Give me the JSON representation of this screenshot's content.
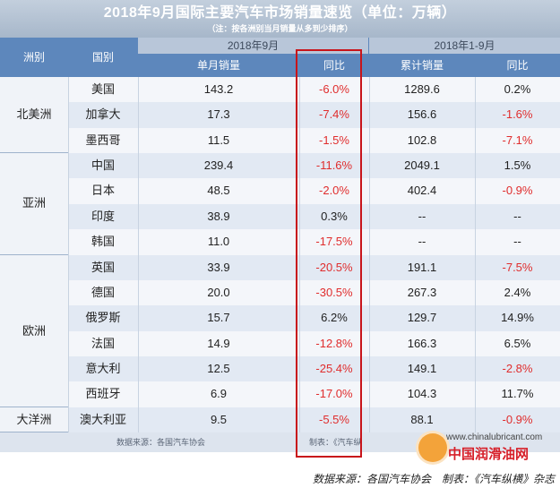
{
  "title": "2018年9月国际主要汽车市场销量速览（单位：万辆）",
  "subtitle": "（注：按各洲别当月销量从多到少排序）",
  "headers": {
    "continent": "洲别",
    "country": "国别",
    "group_month": "2018年9月",
    "group_ytd": "2018年1-9月",
    "monthly_sales": "单月销量",
    "yoy_month": "同比",
    "cumulative_sales": "累计销量",
    "yoy_ytd": "同比"
  },
  "continents": [
    {
      "name": "北美洲",
      "rows": 3
    },
    {
      "name": "亚洲",
      "rows": 4
    },
    {
      "name": "欧洲",
      "rows": 6
    },
    {
      "name": "大洋洲",
      "rows": 1
    }
  ],
  "rows": [
    {
      "country": "美国",
      "monthly": "143.2",
      "yoy": "-6.0%",
      "cumulative": "1289.6",
      "yoy_ytd": "0.2%"
    },
    {
      "country": "加拿大",
      "monthly": "17.3",
      "yoy": "-7.4%",
      "cumulative": "156.6",
      "yoy_ytd": "-1.6%"
    },
    {
      "country": "墨西哥",
      "monthly": "11.5",
      "yoy": "-1.5%",
      "cumulative": "102.8",
      "yoy_ytd": "-7.1%"
    },
    {
      "country": "中国",
      "monthly": "239.4",
      "yoy": "-11.6%",
      "cumulative": "2049.1",
      "yoy_ytd": "1.5%"
    },
    {
      "country": "日本",
      "monthly": "48.5",
      "yoy": "-2.0%",
      "cumulative": "402.4",
      "yoy_ytd": "-0.9%"
    },
    {
      "country": "印度",
      "monthly": "38.9",
      "yoy": "0.3%",
      "cumulative": "--",
      "yoy_ytd": "--"
    },
    {
      "country": "韩国",
      "monthly": "11.0",
      "yoy": "-17.5%",
      "cumulative": "--",
      "yoy_ytd": "--"
    },
    {
      "country": "英国",
      "monthly": "33.9",
      "yoy": "-20.5%",
      "cumulative": "191.1",
      "yoy_ytd": "-7.5%"
    },
    {
      "country": "德国",
      "monthly": "20.0",
      "yoy": "-30.5%",
      "cumulative": "267.3",
      "yoy_ytd": "2.4%"
    },
    {
      "country": "俄罗斯",
      "monthly": "15.7",
      "yoy": "6.2%",
      "cumulative": "129.7",
      "yoy_ytd": "14.9%"
    },
    {
      "country": "法国",
      "monthly": "14.9",
      "yoy": "-12.8%",
      "cumulative": "166.3",
      "yoy_ytd": "6.5%"
    },
    {
      "country": "意大利",
      "monthly": "12.5",
      "yoy": "-25.4%",
      "cumulative": "149.1",
      "yoy_ytd": "-2.8%"
    },
    {
      "country": "西班牙",
      "monthly": "6.9",
      "yoy": "-17.0%",
      "cumulative": "104.3",
      "yoy_ytd": "11.7%"
    },
    {
      "country": "澳大利亚",
      "monthly": "9.5",
      "yoy": "-5.5%",
      "cumulative": "88.1",
      "yoy_ytd": "-0.9%"
    }
  ],
  "table_footer": {
    "source": "数据来源：各国汽车协会",
    "producer": "制表：《汽车纵"
  },
  "watermark": {
    "url": "www.chinalubricant.com",
    "name": "中国润滑油网"
  },
  "caption": "数据来源：各国汽车协会　制表：《汽车纵横》杂志",
  "colors": {
    "header_blue": "#5d87bc",
    "negative_red": "#e02d2d",
    "highlight_red": "#c8141a"
  }
}
